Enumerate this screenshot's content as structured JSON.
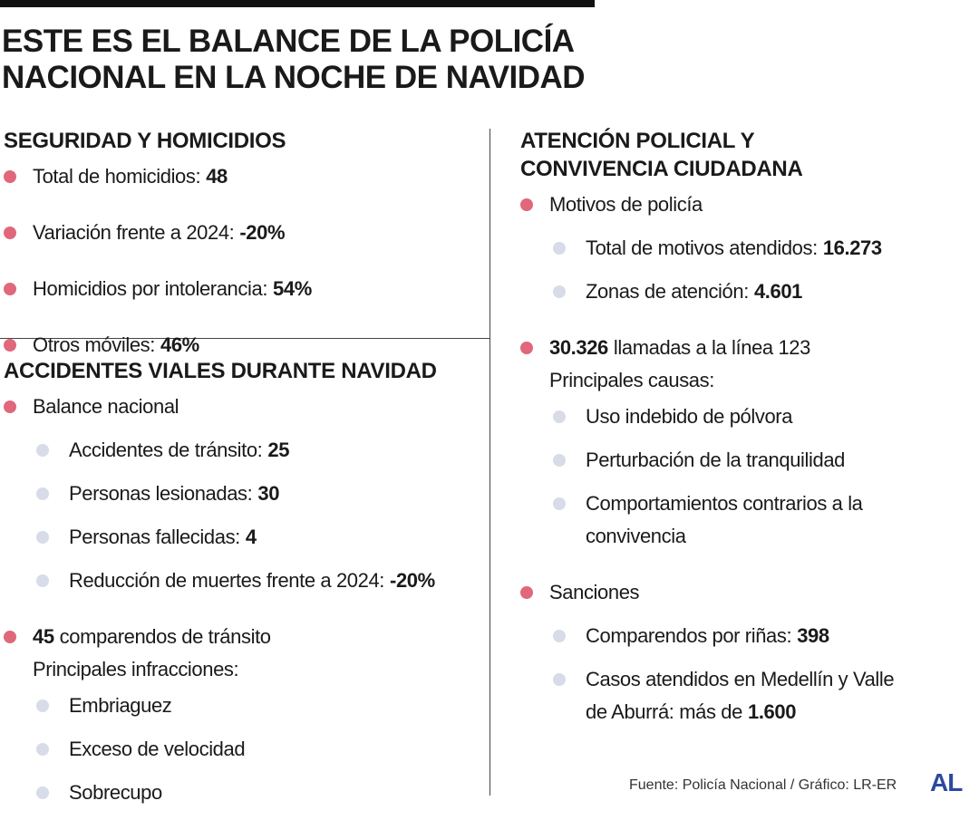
{
  "header": {
    "title_lines": [
      "ESTE ES EL BALANCE DE LA POLICÍA",
      "NACIONAL EN LA NOCHE DE NAVIDAD"
    ]
  },
  "left": [
    {
      "heading_lines": [
        "SEGURIDAD Y HOMICIDIOS"
      ],
      "items": [
        {
          "text": "Total de homicidios:",
          "value": "48"
        },
        {
          "text": "Variación frente a 2024:",
          "value": "-20%"
        },
        {
          "text": "Homicidios por intolerancia:",
          "value": "54%"
        },
        {
          "text": "Otros móviles:",
          "value": "46%"
        }
      ]
    },
    {
      "heading_lines": [
        "ACCIDENTES VIALES DURANTE NAVIDAD"
      ],
      "items": [
        {
          "text": "Balance nacional",
          "sub": [
            {
              "text": "Accidentes de tránsito:",
              "value": "25"
            },
            {
              "text": "Personas lesionadas:",
              "value": "30"
            },
            {
              "text": "Personas fallecidas:",
              "value": "4"
            },
            {
              "text": "Reducción de muertes frente a 2024:",
              "value": "-20%"
            }
          ]
        },
        {
          "lead": "45",
          "text": "comparendos de tránsito",
          "note": "Principales infracciones:",
          "sub": [
            {
              "text": "Embriaguez"
            },
            {
              "text": "Exceso de velocidad"
            },
            {
              "text": "Sobrecupo"
            }
          ]
        }
      ]
    }
  ],
  "right": [
    {
      "heading_lines": [
        "ATENCIÓN POLICIAL Y",
        "CONVIVENCIA CIUDADANA"
      ],
      "items": [
        {
          "text": "Motivos de policía",
          "sub": [
            {
              "text": "Total de motivos atendidos:",
              "value": "16.273"
            },
            {
              "text": "Zonas de atención:",
              "value": "4.601"
            }
          ]
        },
        {
          "lead": "30.326",
          "text": "llamadas a la línea 123",
          "note": "Principales causas:",
          "sub": [
            {
              "text": "Uso indebido de pólvora"
            },
            {
              "text": "Perturbación de la tranquilidad"
            },
            {
              "text": "Comportamientos contrarios a la convivencia"
            }
          ]
        },
        {
          "text": "Sanciones",
          "sub": [
            {
              "text": "Comparendos por riñas:",
              "value": "398"
            },
            {
              "text": "Casos atendidos en Medellín y Valle de Aburrá: más de",
              "value": "1.600"
            }
          ]
        }
      ]
    }
  ],
  "footer": {
    "source": "Fuente: Policía Nacional / Gráfico: LR-ER",
    "logo": "AL"
  }
}
